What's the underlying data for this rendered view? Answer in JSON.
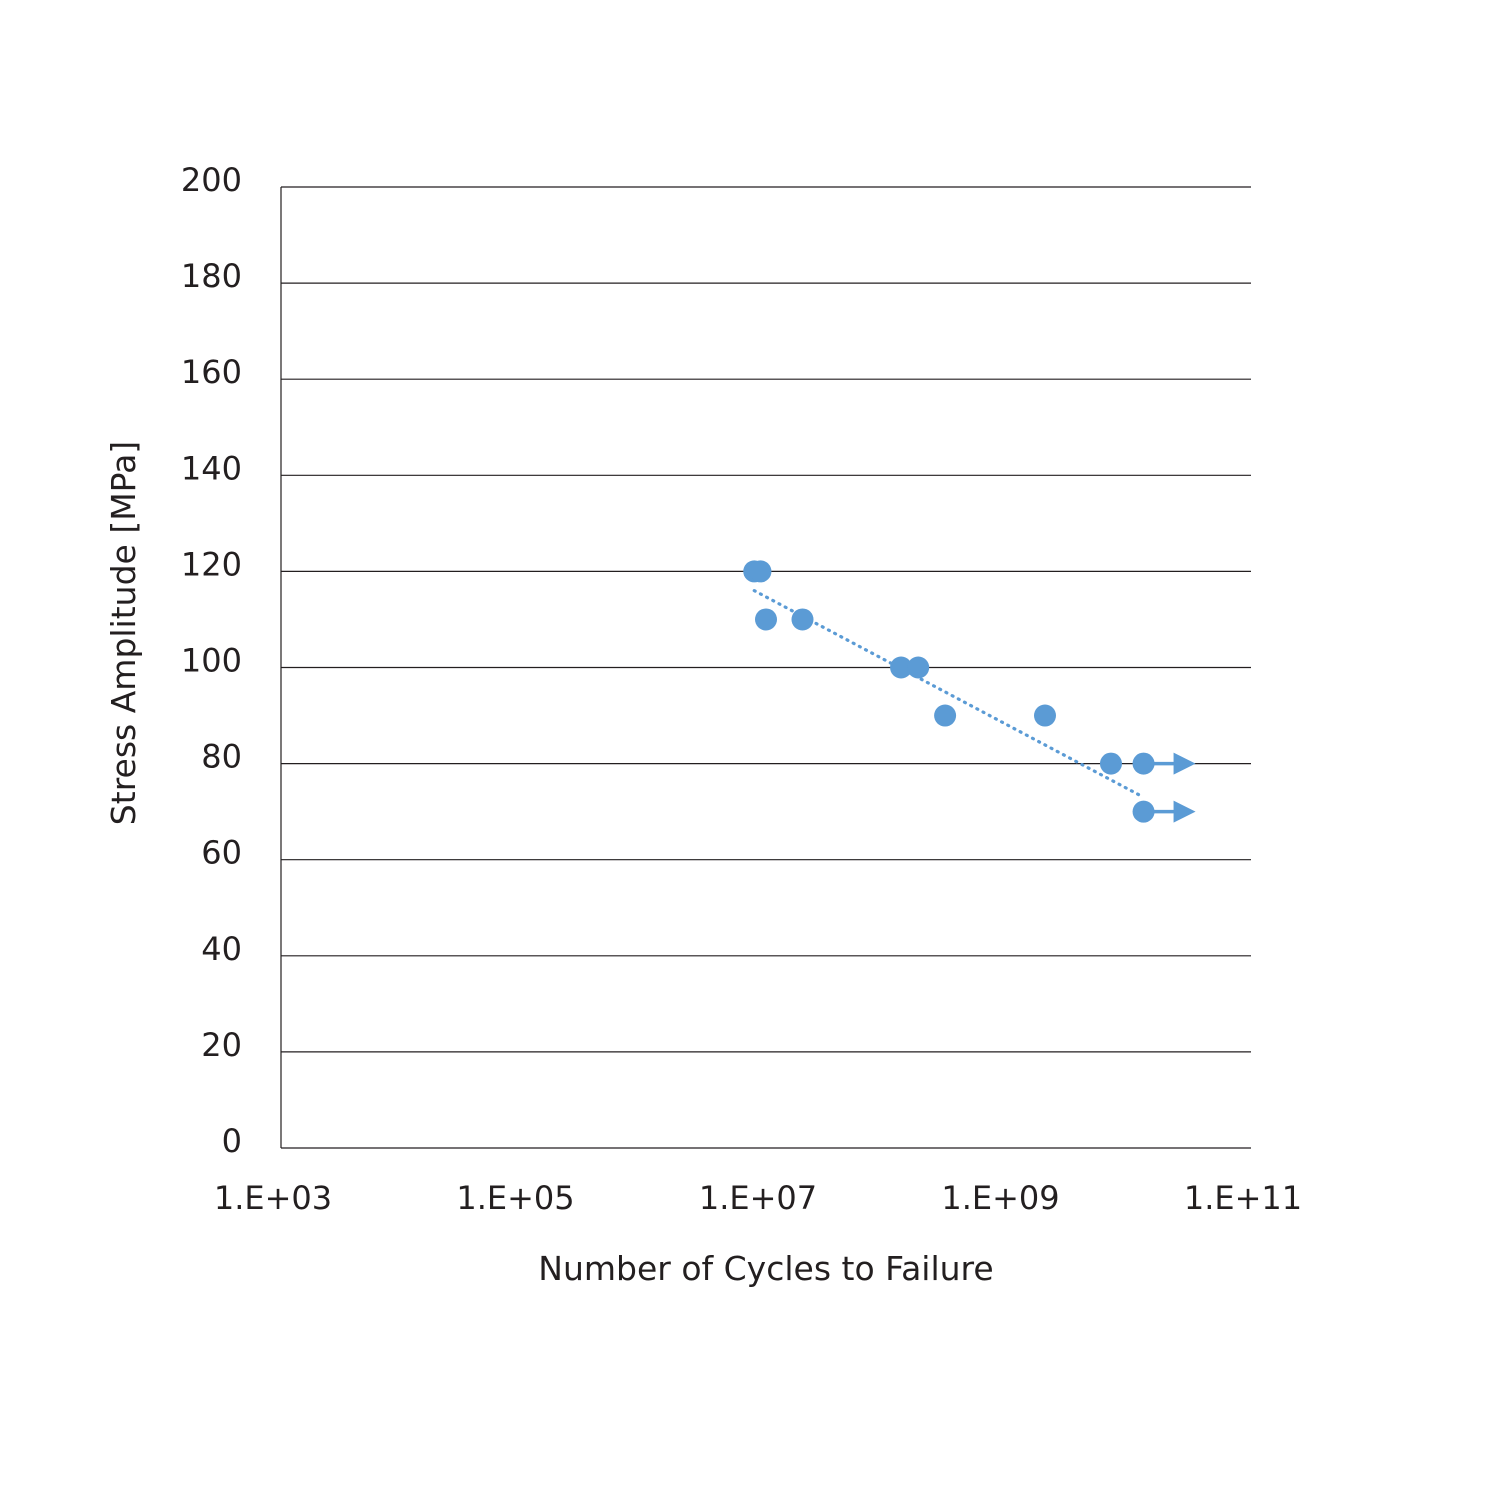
{
  "chart_data": {
    "type": "scatter",
    "xlabel": "Number of Cycles to Failure",
    "ylabel": "Stress Amplitude [MPa]",
    "x_scale": "log",
    "xlim": [
      1000,
      100000000000
    ],
    "ylim": [
      0,
      200
    ],
    "x_tick_labels": [
      "1.E+03",
      "1.E+05",
      "1.E+07",
      "1.E+09",
      "1.E+11"
    ],
    "y_tick_labels": [
      "0",
      "20",
      "40",
      "60",
      "80",
      "100",
      "120",
      "140",
      "160",
      "180",
      "200"
    ],
    "grid": "horizontal",
    "marker_color": "#5b9bd5",
    "axis_color": "#231f20",
    "series": [
      {
        "points": [
          {
            "x": 8000000,
            "y": 120
          },
          {
            "x": 9000000,
            "y": 120
          },
          {
            "x": 10000000,
            "y": 110
          },
          {
            "x": 20000000,
            "y": 110
          },
          {
            "x": 130000000,
            "y": 100
          },
          {
            "x": 180000000,
            "y": 100
          },
          {
            "x": 300000000,
            "y": 90
          },
          {
            "x": 2000000000,
            "y": 90
          },
          {
            "x": 7000000000,
            "y": 80
          },
          {
            "x": 13000000000,
            "y": 80,
            "runout": true
          },
          {
            "x": 13000000000,
            "y": 70,
            "runout": true
          }
        ]
      }
    ],
    "trendline": {
      "style": "dotted",
      "points": [
        {
          "x": 8000000,
          "y": 116
        },
        {
          "x": 13000000000,
          "y": 73
        }
      ]
    }
  }
}
